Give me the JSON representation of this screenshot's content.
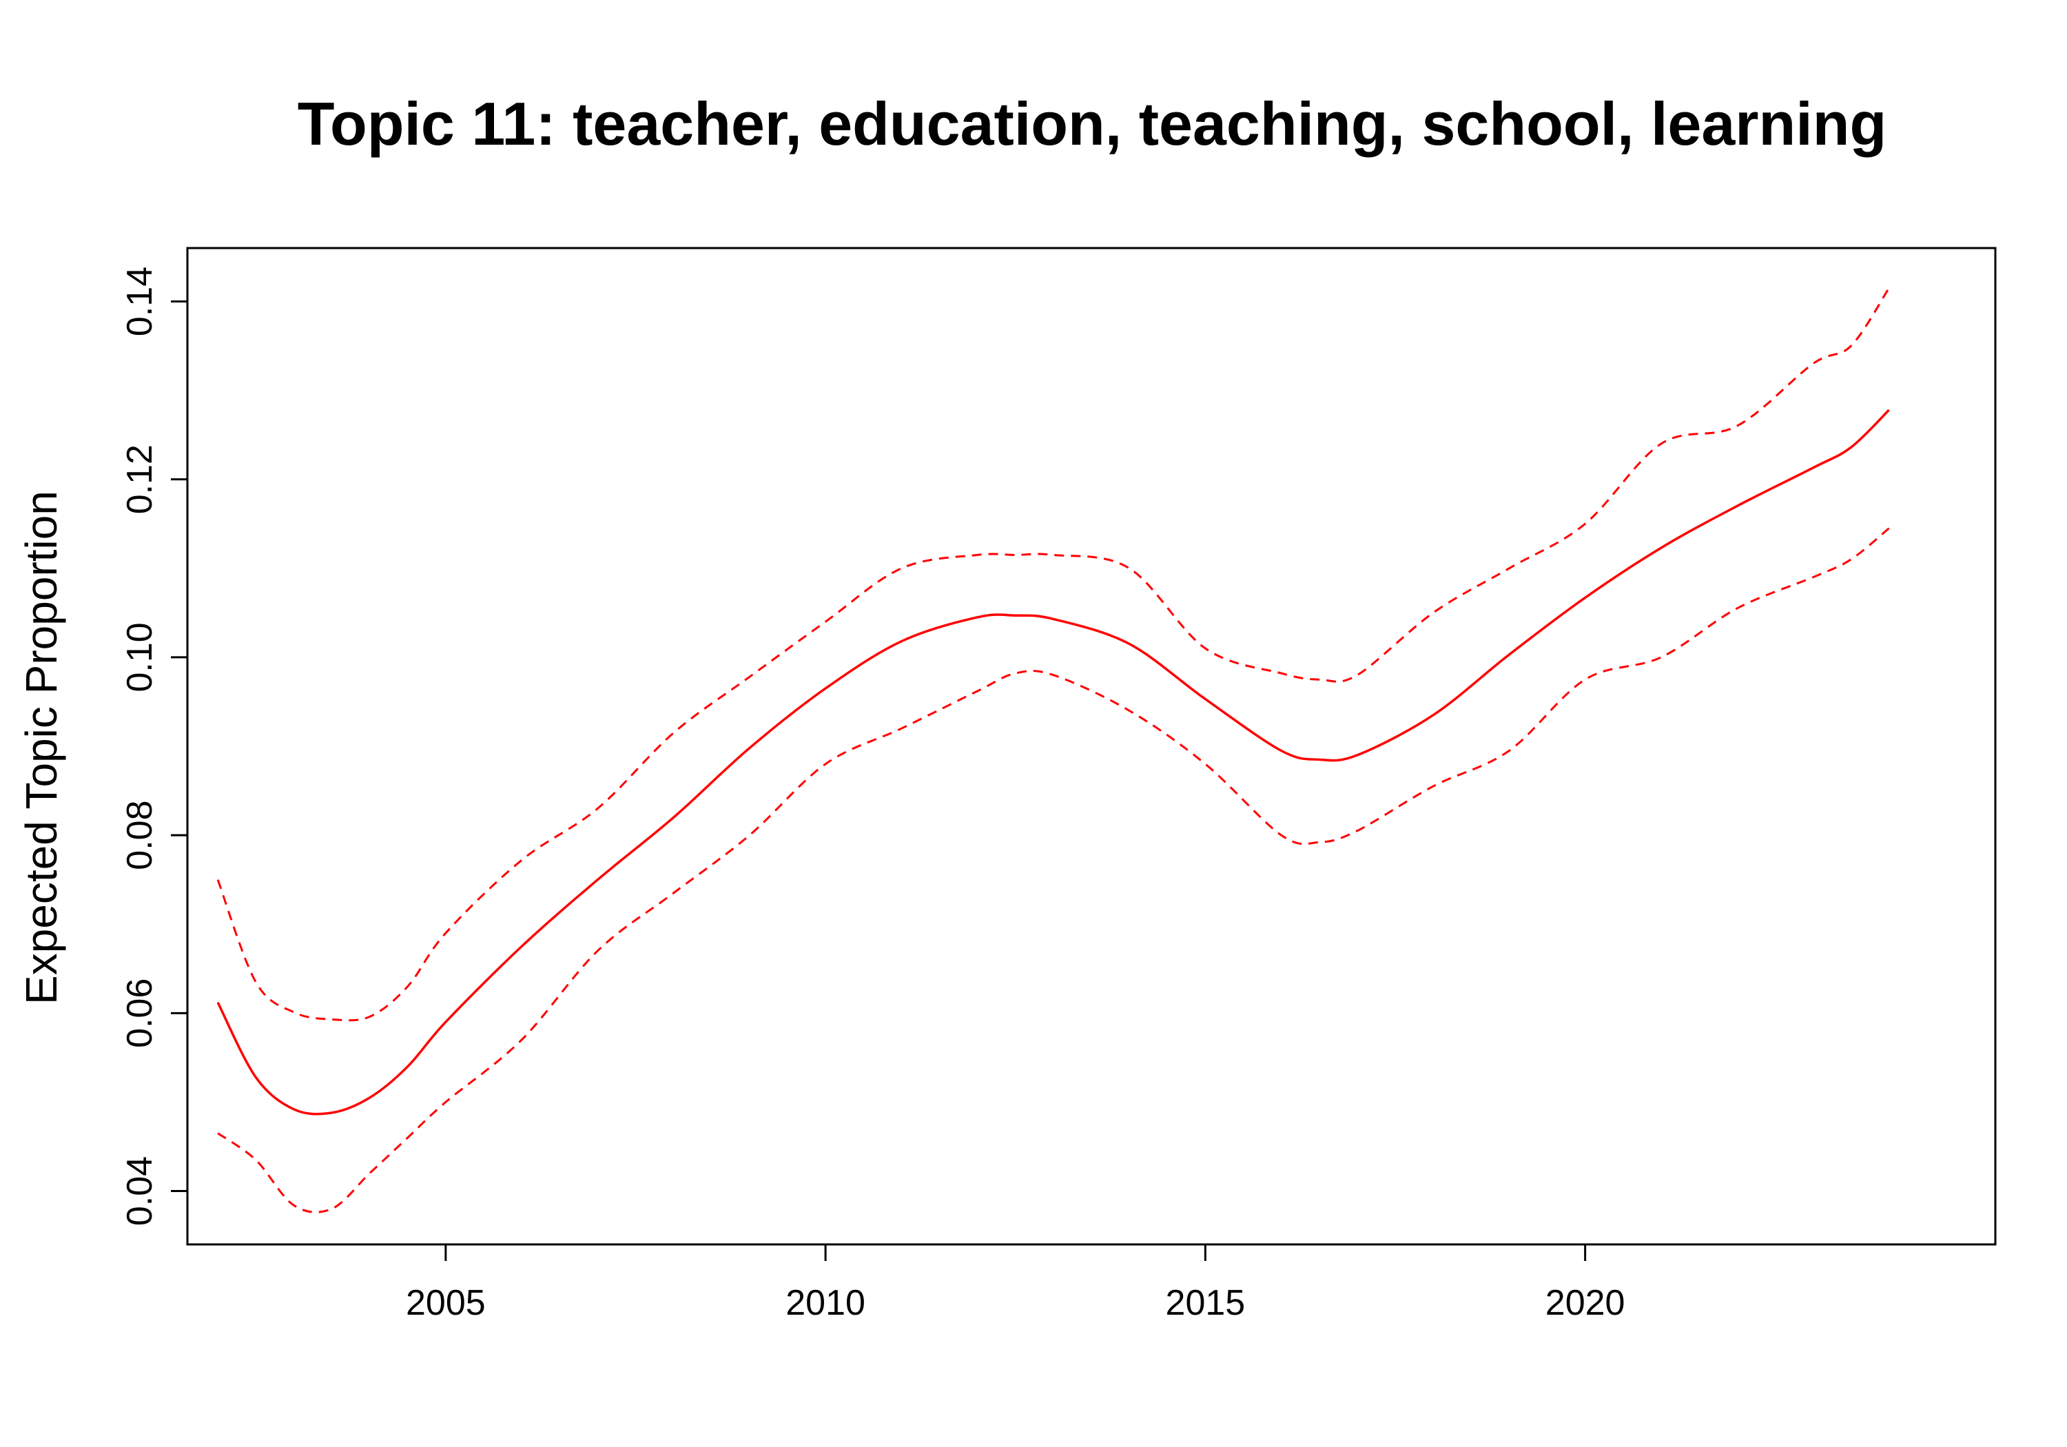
{
  "chart_data": {
    "type": "line",
    "title": "Topic 11: teacher, education, teaching, school, learning",
    "xlabel": "",
    "ylabel": "Expected Topic Proportion",
    "xlim": [
      2001.6,
      2025.4
    ],
    "ylim": [
      0.034,
      0.146
    ],
    "x_ticks": [
      2005,
      2010,
      2015,
      2020
    ],
    "x_tick_labels": [
      "2005",
      "2010",
      "2015",
      "2020"
    ],
    "y_ticks": [
      0.04,
      0.06,
      0.08,
      0.1,
      0.12,
      0.14
    ],
    "y_tick_labels": [
      "0.04",
      "0.06",
      "0.08",
      "0.10",
      "0.12",
      "0.14"
    ],
    "grid": false,
    "color": "#ff0000",
    "x": [
      2002,
      2002.5,
      2003,
      2003.5,
      2004,
      2004.5,
      2005,
      2006,
      2007,
      2008,
      2009,
      2010,
      2011,
      2012,
      2012.5,
      2013,
      2014,
      2015,
      2016,
      2016.5,
      2017,
      2018,
      2019,
      2020,
      2021,
      2022,
      2023,
      2023.5,
      2024
    ],
    "series": [
      {
        "style": "solid",
        "values": [
          0.0612,
          0.0528,
          0.0492,
          0.0488,
          0.0505,
          0.054,
          0.059,
          0.0675,
          0.075,
          0.082,
          0.0898,
          0.0965,
          0.1018,
          0.1045,
          0.1047,
          0.1043,
          0.1015,
          0.0953,
          0.0895,
          0.0885,
          0.089,
          0.0935,
          0.1003,
          0.1067,
          0.1123,
          0.117,
          0.1213,
          0.1236,
          0.1278
        ]
      },
      {
        "style": "dashed",
        "values": [
          0.075,
          0.0635,
          0.0601,
          0.0593,
          0.0596,
          0.063,
          0.069,
          0.0772,
          0.083,
          0.0915,
          0.0978,
          0.104,
          0.11,
          0.1115,
          0.1115,
          0.1115,
          0.11,
          0.101,
          0.0982,
          0.0975,
          0.098,
          0.105,
          0.11,
          0.115,
          0.124,
          0.126,
          0.133,
          0.135,
          0.1415
        ]
      },
      {
        "style": "dashed",
        "values": [
          0.0465,
          0.0435,
          0.0384,
          0.038,
          0.042,
          0.046,
          0.05,
          0.057,
          0.067,
          0.0735,
          0.08,
          0.088,
          0.092,
          0.0962,
          0.0982,
          0.098,
          0.094,
          0.088,
          0.08,
          0.0792,
          0.0805,
          0.0855,
          0.0895,
          0.0975,
          0.1,
          0.1055,
          0.109,
          0.111,
          0.1145
        ]
      }
    ]
  }
}
